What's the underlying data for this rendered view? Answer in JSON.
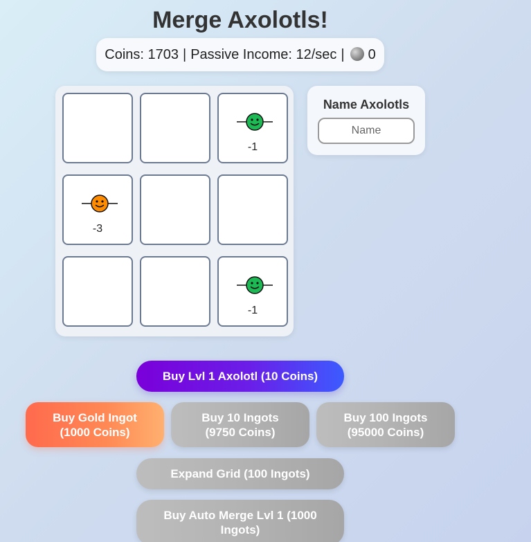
{
  "title": "Merge Axolotls!",
  "stats": {
    "coins_label": "Coins: 1703",
    "income_label": "Passive Income: 12/sec",
    "separator": "|",
    "moon_count": "0"
  },
  "grid": {
    "cells": [
      {
        "level": "",
        "color": ""
      },
      {
        "level": "",
        "color": ""
      },
      {
        "level": "-1",
        "color": "#1db954"
      },
      {
        "level": "-3",
        "color": "#ff8c00"
      },
      {
        "level": "",
        "color": ""
      },
      {
        "level": "",
        "color": ""
      },
      {
        "level": "",
        "color": ""
      },
      {
        "level": "",
        "color": ""
      },
      {
        "level": "-1",
        "color": "#1db954"
      }
    ]
  },
  "name_panel": {
    "title": "Name Axolotls",
    "placeholder": "Name"
  },
  "buttons": {
    "buy_axolotl": "Buy Lvl 1 Axolotl (10 Coins)",
    "buy_gold_line1": "Buy Gold Ingot",
    "buy_gold_line2": "(1000 Coins)",
    "buy_10_line1": "Buy 10 Ingots",
    "buy_10_line2": "(9750 Coins)",
    "buy_100_line1": "Buy 100 Ingots",
    "buy_100_line2": "(95000 Coins)",
    "expand_grid": "Expand Grid (100 Ingots)",
    "auto_merge_line1": "Buy Auto Merge Lvl 1 (1000",
    "auto_merge_line2": "Ingots)"
  },
  "colors": {
    "axolotl_green": "#1db954",
    "axolotl_orange": "#ff8c00",
    "buy_gradient_start": "#7a00d9",
    "buy_gradient_end": "#3c5bff",
    "gold_gradient_start": "#ff6a4d",
    "gold_gradient_end": "#ffb070",
    "disabled_grey": "#b3b3b3"
  },
  "icons": {
    "moon": "moon-icon",
    "axolotl": "axolotl-icon"
  }
}
